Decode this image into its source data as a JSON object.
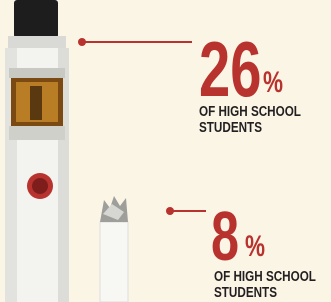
{
  "stats": [
    {
      "value": 26,
      "unit": "%",
      "label_lines": [
        "OF HIGH SCHOOL",
        "STUDENTS"
      ]
    },
    {
      "value": 8,
      "unit": "%",
      "label_lines": [
        "OF HIGH SCHOOL",
        "STUDENTS"
      ]
    }
  ]
}
